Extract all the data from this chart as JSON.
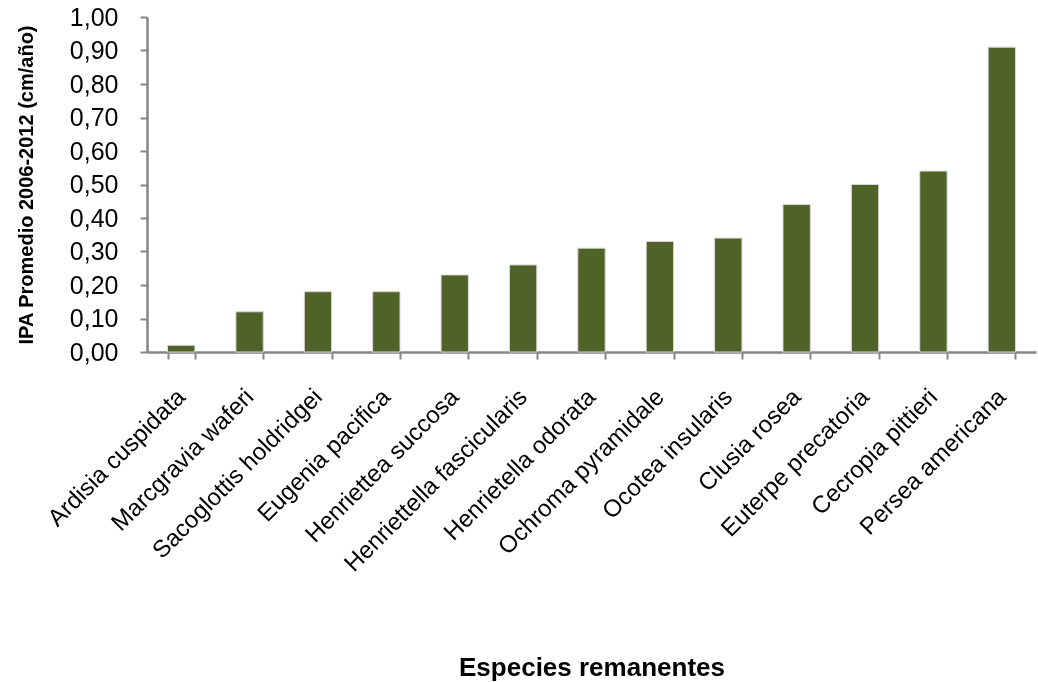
{
  "chart_data": {
    "type": "bar",
    "xlabel": "Especies remanentes",
    "ylabel": "IPA Promedio 2006-2012 (cm/año)",
    "categories": [
      "Ardisia cuspidata",
      "Marcgravia waferi",
      "Sacoglottis holdridgei",
      "Eugenia pacifica",
      "Henriettea succosa",
      "Henriettella fascicularis",
      "Henrietella odorata",
      "Ochroma pyramidale",
      "Ocotea insularis",
      "Clusia rosea",
      "Euterpe precatoria",
      "Cecropia pittieri",
      "Persea americana"
    ],
    "values": [
      0.02,
      0.12,
      0.18,
      0.18,
      0.23,
      0.26,
      0.31,
      0.33,
      0.34,
      0.44,
      0.5,
      0.54,
      0.91
    ],
    "color": "#4f6228",
    "ylim": [
      0,
      1
    ],
    "yticks": [
      {
        "value": 0,
        "label": "0,00"
      },
      {
        "value": 0.1,
        "label": "0,10"
      },
      {
        "value": 0.2,
        "label": "0,20"
      },
      {
        "value": 0.3,
        "label": "0,30"
      },
      {
        "value": 0.4,
        "label": "0,40"
      },
      {
        "value": 0.5,
        "label": "0,50"
      },
      {
        "value": 0.6,
        "label": "0,60"
      },
      {
        "value": 0.7,
        "label": "0,70"
      },
      {
        "value": 0.8,
        "label": "0,80"
      },
      {
        "value": 0.9,
        "label": "0,90"
      },
      {
        "value": 1,
        "label": "1,00"
      }
    ]
  }
}
